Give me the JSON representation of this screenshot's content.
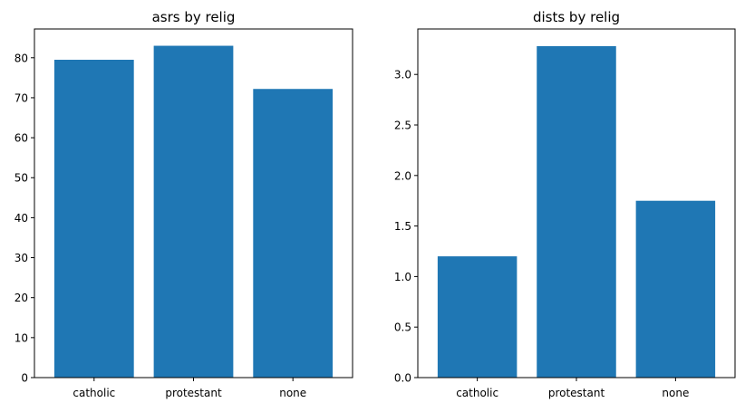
{
  "chart_data": [
    {
      "type": "bar",
      "title": "asrs by relig",
      "categories": [
        "catholic",
        "protestant",
        "none"
      ],
      "values": [
        79.5,
        83.0,
        72.2
      ],
      "ylim": [
        0,
        87.2
      ],
      "yticks": [
        "0",
        "10",
        "20",
        "30",
        "40",
        "50",
        "60",
        "70",
        "80"
      ],
      "xlabel": "",
      "ylabel": "",
      "bar_color": "#1f77b4",
      "grid": false
    },
    {
      "type": "bar",
      "title": "dists by relig",
      "categories": [
        "catholic",
        "protestant",
        "none"
      ],
      "values": [
        1.2,
        3.28,
        1.75
      ],
      "ylim": [
        0,
        3.45
      ],
      "yticks": [
        "0.0",
        "0.5",
        "1.0",
        "1.5",
        "2.0",
        "2.5",
        "3.0"
      ],
      "xlabel": "",
      "ylabel": "",
      "bar_color": "#1f77b4",
      "grid": false
    }
  ]
}
